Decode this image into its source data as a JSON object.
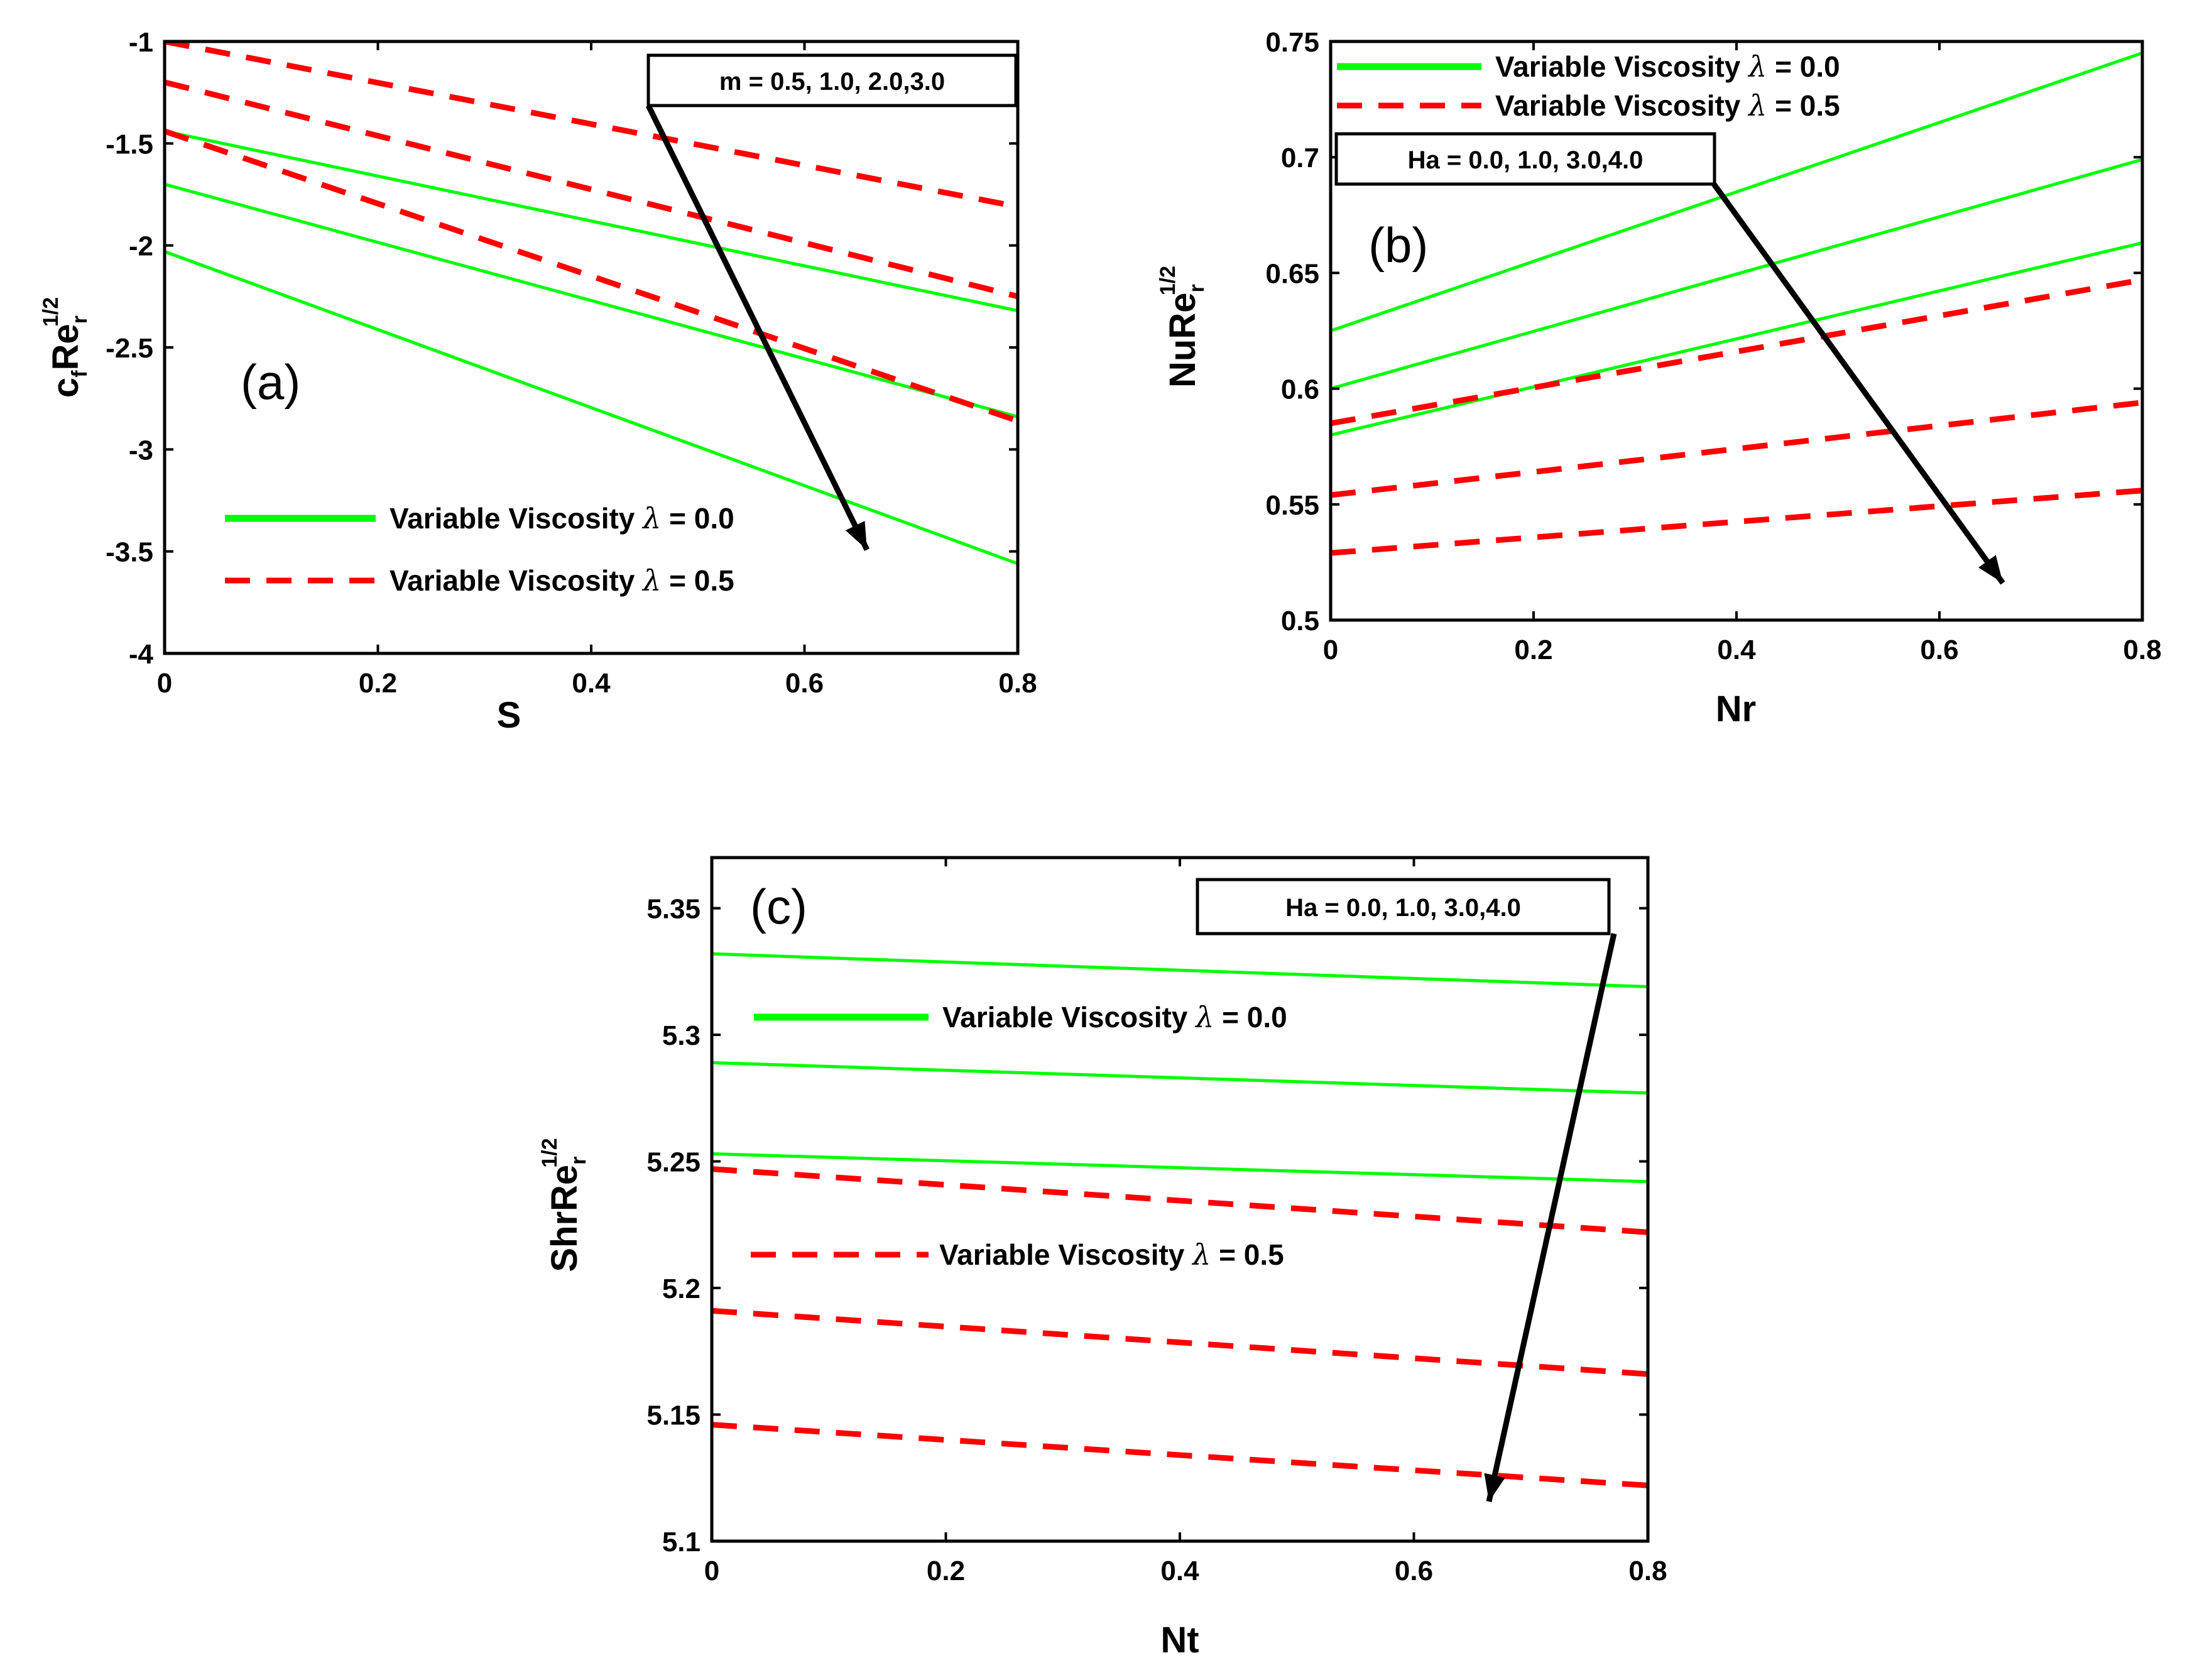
{
  "colors": {
    "lambda0": "#00ff00",
    "lambda05": "#ff0000",
    "axis": "#000000"
  },
  "legend": {
    "prefix": "Variable Viscosity ",
    "lambda_symbol": "λ",
    "lambda0_value": " = 0.0",
    "lambda05_value": " = 0.5"
  },
  "chart_data": [
    {
      "type": "line",
      "panel_label": "(a)",
      "xlabel": "S",
      "ylabel_main": "c",
      "ylabel_sub": "f",
      "ylabel_main2": "Re",
      "ylabel_sub2": "r",
      "ylabel_sup": "1/2",
      "xlim": [
        0,
        0.8
      ],
      "ylim": [
        -4,
        -1
      ],
      "xticks": [
        0,
        0.2,
        0.4,
        0.6,
        0.8
      ],
      "xtick_labels": [
        "0",
        "0.2",
        "0.4",
        "0.6",
        "0.8"
      ],
      "yticks": [
        -4,
        -3.5,
        -3,
        -2.5,
        -2,
        -1.5,
        -1
      ],
      "ytick_labels": [
        "-4",
        "-3.5",
        "-3",
        "-2.5",
        "-2",
        "-1.5",
        "-1"
      ],
      "annotation": "m = 0.5, 1.0, 2.0,3.0",
      "legend_position": "bottom-left",
      "series": [
        {
          "group": "lambda0",
          "x": [
            0,
            0.8
          ],
          "y": [
            -1.44,
            -2.32
          ]
        },
        {
          "group": "lambda0",
          "x": [
            0,
            0.8
          ],
          "y": [
            -1.7,
            -2.84
          ]
        },
        {
          "group": "lambda0",
          "x": [
            0,
            0.8
          ],
          "y": [
            -2.03,
            -3.56
          ]
        },
        {
          "group": "lambda05",
          "x": [
            0,
            0.8
          ],
          "y": [
            -1.0,
            -1.81
          ]
        },
        {
          "group": "lambda05",
          "x": [
            0,
            0.8
          ],
          "y": [
            -1.2,
            -2.25
          ]
        },
        {
          "group": "lambda05",
          "x": [
            0,
            0.8
          ],
          "y": [
            -1.44,
            -2.86
          ]
        }
      ]
    },
    {
      "type": "line",
      "panel_label": "(b)",
      "xlabel": "Nr",
      "ylabel_main": "NuRe",
      "ylabel_sub": "r",
      "ylabel_sup": "1/2",
      "xlim": [
        0,
        0.8
      ],
      "ylim": [
        0.5,
        0.75
      ],
      "xticks": [
        0,
        0.2,
        0.4,
        0.6,
        0.8
      ],
      "xtick_labels": [
        "0",
        "0.2",
        "0.4",
        "0.6",
        "0.8"
      ],
      "yticks": [
        0.5,
        0.55,
        0.6,
        0.65,
        0.7,
        0.75
      ],
      "ytick_labels": [
        "0.5",
        "0.55",
        "0.6",
        "0.65",
        "0.7",
        "0.75"
      ],
      "annotation": "Ha = 0.0, 1.0, 3.0,4.0",
      "legend_position": "top-left",
      "series": [
        {
          "group": "lambda0",
          "x": [
            0,
            0.8
          ],
          "y": [
            0.625,
            0.745
          ]
        },
        {
          "group": "lambda0",
          "x": [
            0,
            0.8
          ],
          "y": [
            0.6,
            0.699
          ]
        },
        {
          "group": "lambda0",
          "x": [
            0,
            0.8
          ],
          "y": [
            0.58,
            0.663
          ]
        },
        {
          "group": "lambda05",
          "x": [
            0,
            0.8
          ],
          "y": [
            0.585,
            0.647
          ]
        },
        {
          "group": "lambda05",
          "x": [
            0,
            0.8
          ],
          "y": [
            0.554,
            0.594
          ]
        },
        {
          "group": "lambda05",
          "x": [
            0,
            0.8
          ],
          "y": [
            0.529,
            0.556
          ]
        }
      ]
    },
    {
      "type": "line",
      "panel_label": "(c)",
      "xlabel": "Nt",
      "ylabel_main": "ShrRe",
      "ylabel_sub": "r",
      "ylabel_sup": "1/2",
      "xlim": [
        0,
        0.8
      ],
      "ylim": [
        5.1,
        5.37
      ],
      "xticks": [
        0,
        0.2,
        0.4,
        0.6,
        0.8
      ],
      "xtick_labels": [
        "0",
        "0.2",
        "0.4",
        "0.6",
        "0.8"
      ],
      "yticks": [
        5.1,
        5.15,
        5.2,
        5.25,
        5.3,
        5.35
      ],
      "ytick_labels": [
        "5.1",
        "5.15",
        "5.2",
        "5.25",
        "5.3",
        "5.35"
      ],
      "annotation": "Ha = 0.0, 1.0, 3.0,4.0",
      "legend_position": "left",
      "series": [
        {
          "group": "lambda0",
          "x": [
            0,
            0.8
          ],
          "y": [
            5.332,
            5.319
          ]
        },
        {
          "group": "lambda0",
          "x": [
            0,
            0.8
          ],
          "y": [
            5.289,
            5.277
          ]
        },
        {
          "group": "lambda0",
          "x": [
            0,
            0.8
          ],
          "y": [
            5.253,
            5.242
          ]
        },
        {
          "group": "lambda05",
          "x": [
            0,
            0.8
          ],
          "y": [
            5.247,
            5.222
          ]
        },
        {
          "group": "lambda05",
          "x": [
            0,
            0.8
          ],
          "y": [
            5.191,
            5.166
          ]
        },
        {
          "group": "lambda05",
          "x": [
            0,
            0.8
          ],
          "y": [
            5.146,
            5.122
          ]
        }
      ]
    }
  ]
}
